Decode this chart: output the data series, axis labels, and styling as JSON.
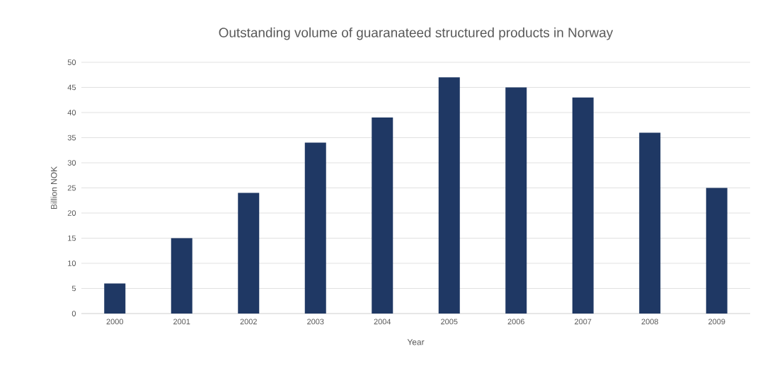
{
  "chart_data": {
    "type": "bar",
    "title": "Outstanding volume of guaranateed structured products in Norway",
    "xlabel": "Year",
    "ylabel": "Billion NOK",
    "categories": [
      "2000",
      "2001",
      "2002",
      "2003",
      "2004",
      "2005",
      "2006",
      "2007",
      "2008",
      "2009"
    ],
    "values": [
      6,
      15,
      24,
      34,
      39,
      47,
      45,
      43,
      36,
      25
    ],
    "color": "#1f3864",
    "ylim": [
      0,
      50
    ],
    "yticks": [
      0,
      5,
      10,
      15,
      20,
      25,
      30,
      35,
      40,
      45,
      50
    ],
    "grid": "y"
  }
}
